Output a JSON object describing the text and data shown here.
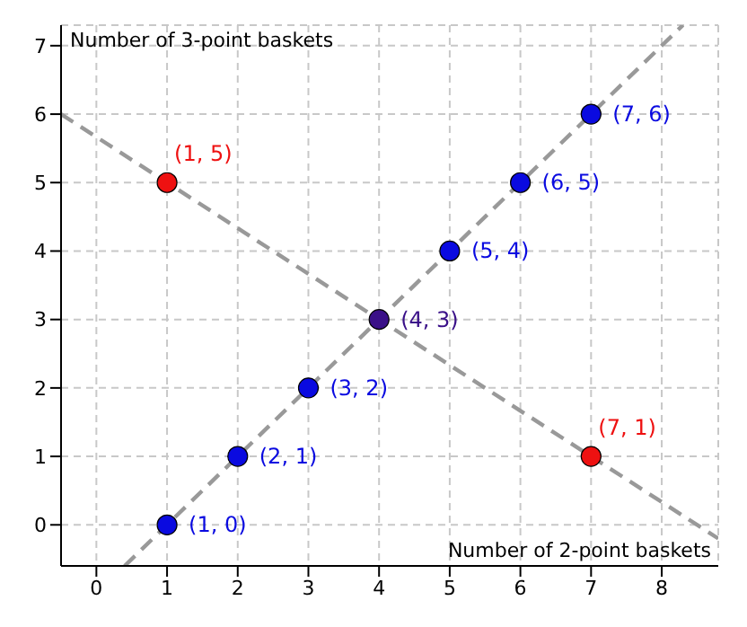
{
  "chart_data": {
    "type": "scatter",
    "xlabel": "Number of 2-point baskets",
    "ylabel": "Number of 3-point baskets",
    "xlim": [
      -0.5,
      8.8
    ],
    "ylim": [
      -0.6,
      7.3
    ],
    "xticks": [
      0,
      1,
      2,
      3,
      4,
      5,
      6,
      7,
      8
    ],
    "yticks": [
      0,
      1,
      2,
      3,
      4,
      5,
      6,
      7
    ],
    "grid": true,
    "marker": "circle",
    "series": [
      {
        "type": "line",
        "color": "#999999",
        "line_style": "dashed",
        "marker": "none",
        "x": [
          0.4,
          8.3
        ],
        "values": [
          -0.6,
          7.3
        ]
      },
      {
        "type": "line",
        "color": "#999999",
        "line_style": "dashed",
        "marker": "none",
        "x": [
          -0.5,
          8.8
        ],
        "values": [
          6.0,
          -0.2
        ]
      },
      {
        "color": "#0a0ae0",
        "x": [
          1,
          2,
          3,
          5,
          6,
          7
        ],
        "values": [
          0,
          1,
          2,
          4,
          5,
          6
        ],
        "value_labels": [
          "(1, 0)",
          "(2, 1)",
          "(3, 2)",
          "(5, 4)",
          "(6, 5)",
          "(7, 6)"
        ]
      },
      {
        "color": "#ee1111",
        "x": [
          1,
          7
        ],
        "values": [
          5,
          1
        ],
        "value_labels": [
          "(1, 5)",
          "(7, 1)"
        ]
      },
      {
        "color": "#3a1088",
        "x": [
          4
        ],
        "values": [
          3
        ],
        "value_labels": [
          "(4, 3)"
        ]
      }
    ]
  }
}
